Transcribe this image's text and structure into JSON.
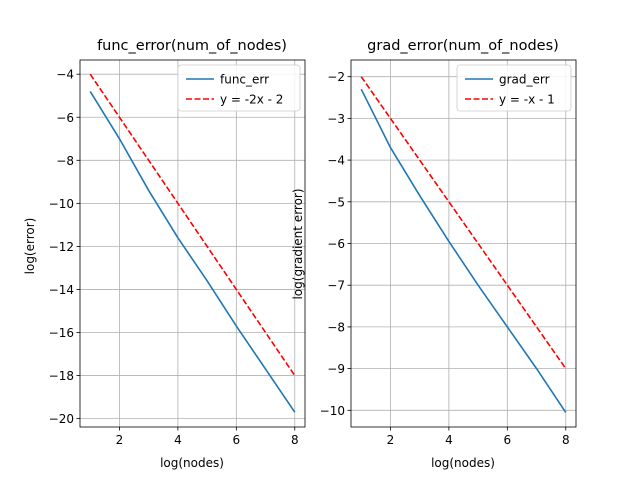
{
  "chart_data": [
    {
      "type": "line",
      "title": "func_error(num_of_nodes)",
      "xlabel": "log(nodes)",
      "ylabel": "log(error)",
      "xlim": [
        0.65,
        8.35
      ],
      "ylim": [
        -20.39,
        -3.34
      ],
      "xticks": [
        2,
        4,
        6,
        8
      ],
      "yticks": [
        -20,
        -18,
        -16,
        -14,
        -12,
        -10,
        -8,
        -6,
        -4
      ],
      "grid": true,
      "legend": "upper right",
      "series": [
        {
          "name": "func_err",
          "style": "solid",
          "color": "#1f77b4",
          "x": [
            1,
            2,
            3,
            4,
            5,
            6,
            7,
            8
          ],
          "y": [
            -4.8,
            -7.0,
            -9.4,
            -11.6,
            -13.6,
            -15.7,
            -17.7,
            -19.7
          ]
        },
        {
          "name": "y = -2x - 2",
          "style": "dashed",
          "color": "#ff0000",
          "x": [
            1,
            8
          ],
          "y": [
            -4,
            -18
          ]
        }
      ]
    },
    {
      "type": "line",
      "title": "grad_error(num_of_nodes)",
      "xlabel": "log(nodes)",
      "ylabel": "log(gradient error)",
      "xlim": [
        0.65,
        8.35
      ],
      "ylim": [
        -10.4,
        -1.6
      ],
      "xticks": [
        2,
        4,
        6,
        8
      ],
      "yticks": [
        -10,
        -9,
        -8,
        -7,
        -6,
        -5,
        -4,
        -3,
        -2
      ],
      "grid": true,
      "legend": "upper right",
      "series": [
        {
          "name": "grad_err",
          "style": "solid",
          "color": "#1f77b4",
          "x": [
            1,
            2,
            3,
            4,
            5,
            6,
            7,
            8
          ],
          "y": [
            -2.3,
            -3.7,
            -4.85,
            -5.95,
            -7.0,
            -8.0,
            -9.0,
            -10.05
          ]
        },
        {
          "name": "y = -x - 1",
          "style": "dashed",
          "color": "#ff0000",
          "x": [
            1,
            8
          ],
          "y": [
            -2,
            -9
          ]
        }
      ]
    }
  ]
}
